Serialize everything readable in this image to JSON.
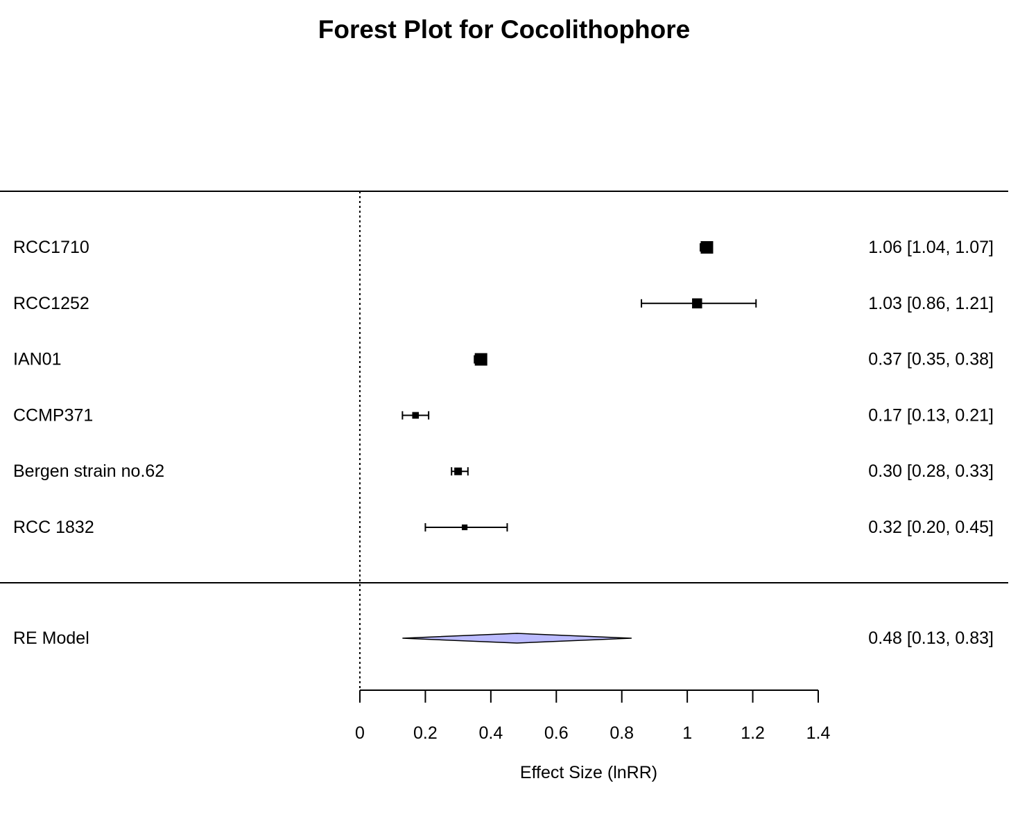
{
  "chart_data": {
    "type": "forest",
    "title": "Forest Plot for Cocolithophore",
    "xlabel": "Effect Size (lnRR)",
    "xlim": [
      0,
      1.4
    ],
    "x_ticks": [
      0,
      0.2,
      0.4,
      0.6,
      0.8,
      1,
      1.2,
      1.4
    ],
    "x_tick_labels": [
      "0",
      "0.2",
      "0.4",
      "0.6",
      "0.8",
      "1",
      "1.2",
      "1.4"
    ],
    "reference_line": 0,
    "studies": [
      {
        "name": "RCC1710",
        "estimate": 1.06,
        "lower": 1.04,
        "upper": 1.07,
        "label": "1.06 [1.04, 1.07]",
        "weight": 1.0
      },
      {
        "name": "RCC1252",
        "estimate": 1.03,
        "lower": 0.86,
        "upper": 1.21,
        "label": "1.03 [0.86, 1.21]",
        "weight": 0.75
      },
      {
        "name": "IAN01",
        "estimate": 0.37,
        "lower": 0.35,
        "upper": 0.38,
        "label": "0.37 [0.35, 0.38]",
        "weight": 1.0
      },
      {
        "name": "CCMP371",
        "estimate": 0.17,
        "lower": 0.13,
        "upper": 0.21,
        "label": "0.17 [0.13, 0.21]",
        "weight": 0.4
      },
      {
        "name": "Bergen strain no.62",
        "estimate": 0.3,
        "lower": 0.28,
        "upper": 0.33,
        "label": "0.30 [0.28, 0.33]",
        "weight": 0.5
      },
      {
        "name": "RCC 1832",
        "estimate": 0.32,
        "lower": 0.2,
        "upper": 0.45,
        "label": "0.32 [0.20, 0.45]",
        "weight": 0.3
      }
    ],
    "summary": {
      "name": "RE Model",
      "estimate": 0.48,
      "lower": 0.13,
      "upper": 0.83,
      "label": "0.48 [0.13, 0.83]",
      "fill": "#bbbbff"
    }
  }
}
